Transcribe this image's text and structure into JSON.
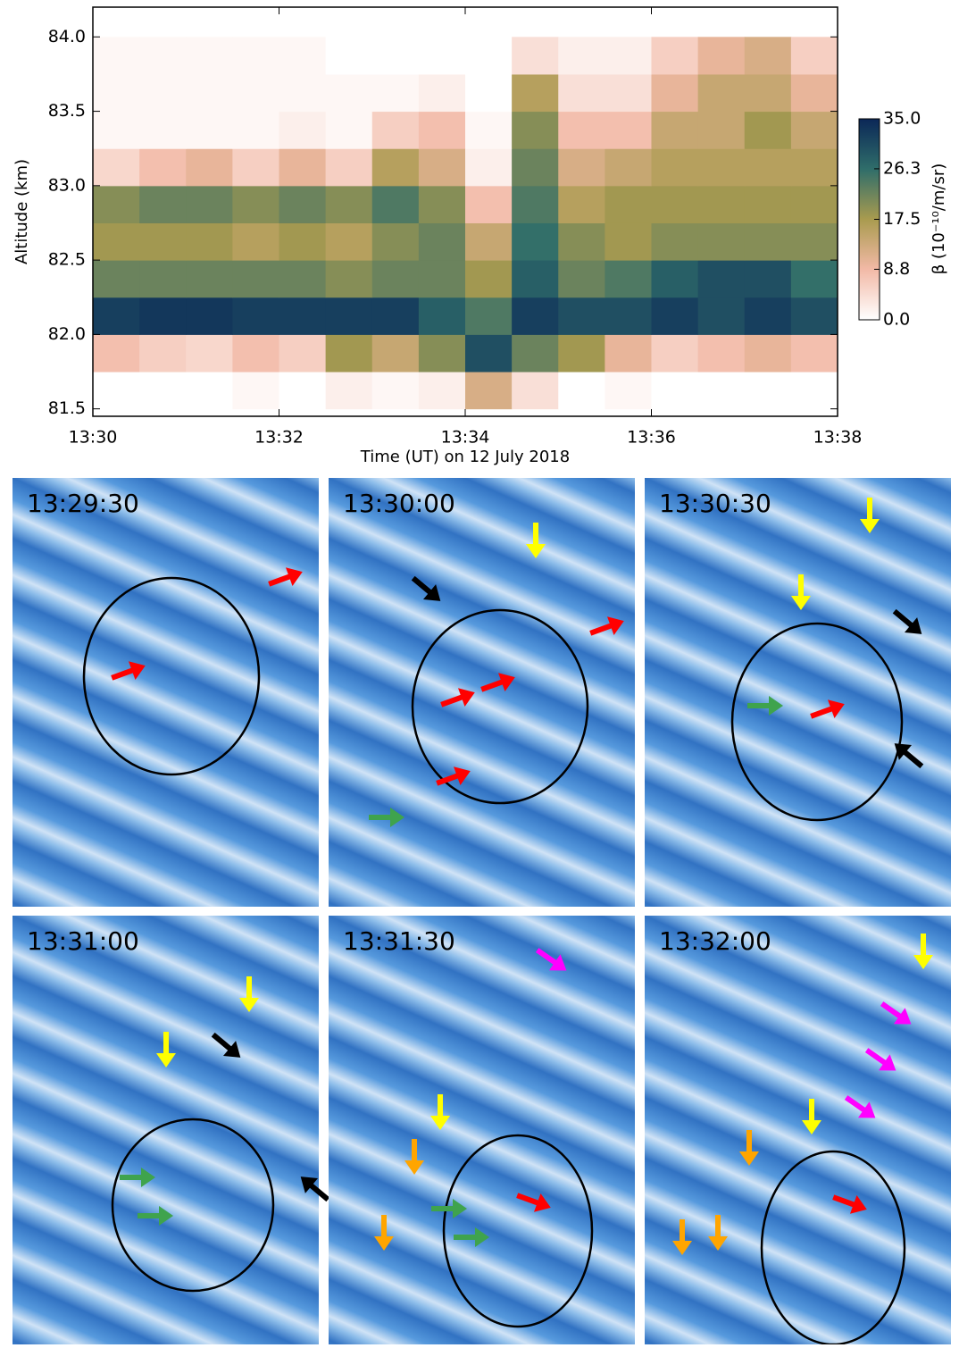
{
  "chart_data": {
    "type": "heatmap",
    "x_label": "Time (UT) on 12 July 2018",
    "y_label": "Altitude (km)",
    "colorbar_label": "β (10⁻¹⁰/m/sr)",
    "x": [
      "13:30:00",
      "13:30:30",
      "13:31:00",
      "13:31:30",
      "13:32:00",
      "13:32:30",
      "13:33:00",
      "13:33:30",
      "13:34:00",
      "13:34:30",
      "13:35:00",
      "13:35:30",
      "13:36:00",
      "13:36:30",
      "13:37:00",
      "13:37:30",
      "13:38:00"
    ],
    "y": [
      81.5,
      81.75,
      82.0,
      82.25,
      82.5,
      82.75,
      83.0,
      83.25,
      83.5,
      83.75,
      84.0
    ],
    "z": [
      [
        0,
        0,
        0,
        1,
        0,
        2,
        1,
        2,
        12,
        4,
        0,
        1,
        0,
        0,
        0,
        0
      ],
      [
        8,
        6,
        5,
        8,
        6,
        18,
        14,
        20,
        30,
        22,
        18,
        10,
        6,
        8,
        10,
        8
      ],
      [
        32,
        33,
        33,
        32,
        32,
        32,
        32,
        28,
        24,
        32,
        30,
        30,
        32,
        30,
        32,
        30
      ],
      [
        22,
        22,
        22,
        22,
        22,
        20,
        22,
        22,
        18,
        28,
        22,
        24,
        28,
        30,
        30,
        26
      ],
      [
        18,
        18,
        18,
        16,
        18,
        16,
        20,
        22,
        14,
        26,
        20,
        18,
        20,
        20,
        20,
        20
      ],
      [
        20,
        22,
        22,
        20,
        22,
        20,
        24,
        20,
        8,
        24,
        16,
        18,
        18,
        18,
        18,
        18
      ],
      [
        5,
        8,
        10,
        6,
        10,
        6,
        16,
        12,
        2,
        22,
        12,
        14,
        16,
        16,
        16,
        16
      ],
      [
        1,
        1,
        1,
        1,
        2,
        1,
        6,
        8,
        1,
        20,
        8,
        8,
        14,
        14,
        18,
        14
      ],
      [
        1,
        1,
        1,
        1,
        1,
        1,
        1,
        2,
        0,
        16,
        4,
        4,
        10,
        14,
        14,
        10
      ],
      [
        1,
        1,
        1,
        1,
        1,
        0,
        0,
        0,
        0,
        4,
        2,
        2,
        6,
        10,
        12,
        6
      ]
    ],
    "xlim": [
      "13:30",
      "13:38"
    ],
    "xticks": [
      "13:30",
      "13:32",
      "13:34",
      "13:36",
      "13:38"
    ],
    "ylim": [
      81.45,
      84.2
    ],
    "yticks": [
      81.5,
      {
        "value": 82,
        "label": "82.0"
      },
      82.5,
      {
        "value": 83,
        "label": "83.0"
      },
      83.5,
      {
        "value": 84,
        "label": "84.0"
      }
    ],
    "zlim": [
      0,
      35
    ],
    "zticks": [
      {
        "value": 0,
        "label": "0.0"
      },
      8.8,
      17.5,
      26.3,
      {
        "value": 35,
        "label": "35.0"
      }
    ],
    "colormap": [
      "#ffffff",
      "#f2b9a6",
      "#a99b4f",
      "#2f6d6a",
      "#0b2757"
    ]
  },
  "images": [
    {
      "label": "13:29:30"
    },
    {
      "label": "13:30:00"
    },
    {
      "label": "13:30:30"
    },
    {
      "label": "13:31:00"
    },
    {
      "label": "13:31:30"
    },
    {
      "label": "13:32:00"
    }
  ]
}
